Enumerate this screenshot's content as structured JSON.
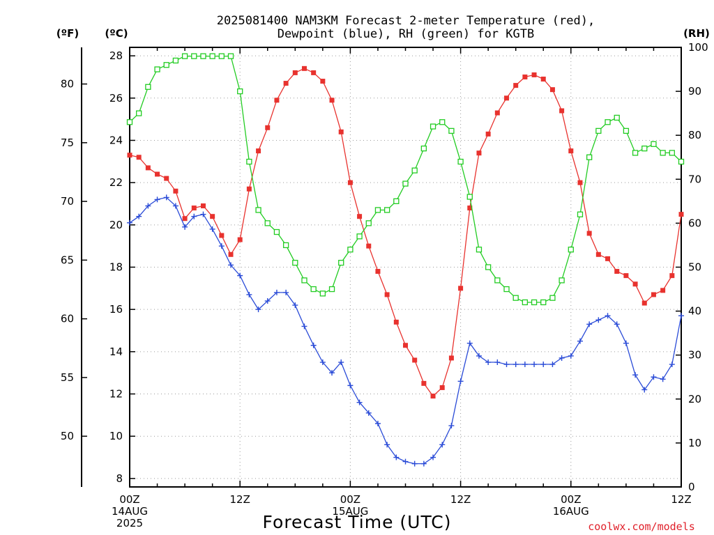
{
  "chart_data": {
    "type": "line",
    "title": [
      "2025081400 NAM3KM Forecast 2-meter Temperature (red),",
      "Dewpoint (blue), RH (green) for KGTB"
    ],
    "xlabel": "Forecast Time (UTC)",
    "units": {
      "left_outer": "(ºF)",
      "left_inner": "(ºC)",
      "right": "(RH)"
    },
    "credit": "coolwx.com/models",
    "xlim": [
      0,
      60
    ],
    "ylim_c": [
      7.6,
      28.4
    ],
    "ylim_rh": [
      0,
      100
    ],
    "ylim_f": [
      45.68,
      83.12
    ],
    "grid": true,
    "x_ticks": [
      {
        "x": 0,
        "lines": [
          "00Z",
          "14AUG",
          "2025"
        ]
      },
      {
        "x": 12,
        "lines": [
          "12Z"
        ]
      },
      {
        "x": 24,
        "lines": [
          "00Z",
          "15AUG"
        ]
      },
      {
        "x": 36,
        "lines": [
          "12Z"
        ]
      },
      {
        "x": 48,
        "lines": [
          "00Z",
          "16AUG"
        ]
      },
      {
        "x": 60,
        "lines": [
          "12Z"
        ]
      }
    ],
    "y_ticks_c": [
      8,
      10,
      12,
      14,
      16,
      18,
      20,
      22,
      24,
      26,
      28
    ],
    "y_ticks_f": [
      50,
      55,
      60,
      65,
      70,
      75,
      80
    ],
    "y_ticks_rh": [
      0,
      10,
      20,
      30,
      40,
      50,
      60,
      70,
      80,
      90,
      100
    ],
    "series": [
      {
        "name": "Temperature",
        "axis": "celsius",
        "color": "#e8322e",
        "marker": "filled-square",
        "x": [
          0,
          1,
          2,
          3,
          4,
          5,
          6,
          7,
          8,
          9,
          10,
          11,
          12,
          13,
          14,
          15,
          16,
          17,
          18,
          19,
          20,
          21,
          22,
          23,
          24,
          25,
          26,
          27,
          28,
          29,
          30,
          31,
          32,
          33,
          34,
          35,
          36,
          37,
          38,
          39,
          40,
          41,
          42,
          43,
          44,
          45,
          46,
          47,
          48,
          49,
          50,
          51,
          52,
          53,
          54,
          55,
          56,
          57,
          58,
          59,
          60
        ],
        "values": [
          23.3,
          23.2,
          22.7,
          22.4,
          22.2,
          21.6,
          20.3,
          20.8,
          20.9,
          20.4,
          19.5,
          18.6,
          19.3,
          21.7,
          23.5,
          24.6,
          25.9,
          26.7,
          27.2,
          27.4,
          27.2,
          26.8,
          25.9,
          24.4,
          22.0,
          20.4,
          19.0,
          17.8,
          16.7,
          15.4,
          14.3,
          13.6,
          12.5,
          11.9,
          12.3,
          13.7,
          17.0,
          20.8,
          23.4,
          24.3,
          25.3,
          26.0,
          26.6,
          27.0,
          27.1,
          26.9,
          26.4,
          25.4,
          23.5,
          22.0,
          19.6,
          18.6,
          18.4,
          17.8,
          17.6,
          17.2,
          16.3,
          16.7,
          16.9,
          17.6,
          20.5
        ]
      },
      {
        "name": "Dewpoint",
        "axis": "celsius",
        "color": "#2a4bd7",
        "marker": "plus",
        "x": [
          0,
          1,
          2,
          3,
          4,
          5,
          6,
          7,
          8,
          9,
          10,
          11,
          12,
          13,
          14,
          15,
          16,
          17,
          18,
          19,
          20,
          21,
          22,
          23,
          24,
          25,
          26,
          27,
          28,
          29,
          30,
          31,
          32,
          33,
          34,
          35,
          36,
          37,
          38,
          39,
          40,
          41,
          42,
          43,
          44,
          45,
          46,
          47,
          48,
          49,
          50,
          51,
          52,
          53,
          54,
          55,
          56,
          57,
          58,
          59,
          60
        ],
        "values": [
          20.1,
          20.4,
          20.9,
          21.2,
          21.3,
          20.9,
          19.9,
          20.4,
          20.5,
          19.8,
          19.0,
          18.1,
          17.6,
          16.7,
          16.0,
          16.4,
          16.8,
          16.8,
          16.2,
          15.2,
          14.3,
          13.5,
          13.0,
          13.5,
          12.4,
          11.6,
          11.1,
          10.6,
          9.6,
          9.0,
          8.8,
          8.7,
          8.7,
          9.0,
          9.6,
          10.5,
          12.6,
          14.4,
          13.8,
          13.5,
          13.5,
          13.4,
          13.4,
          13.4,
          13.4,
          13.4,
          13.4,
          13.7,
          13.8,
          14.5,
          15.3,
          15.5,
          15.7,
          15.3,
          14.4,
          12.9,
          12.2,
          12.8,
          12.7,
          13.4,
          15.7
        ]
      },
      {
        "name": "RH",
        "axis": "rh",
        "color": "#22cc22",
        "marker": "open-square",
        "x": [
          0,
          1,
          2,
          3,
          4,
          5,
          6,
          7,
          8,
          9,
          10,
          11,
          12,
          13,
          14,
          15,
          16,
          17,
          18,
          19,
          20,
          21,
          22,
          23,
          24,
          25,
          26,
          27,
          28,
          29,
          30,
          31,
          32,
          33,
          34,
          35,
          36,
          37,
          38,
          39,
          40,
          41,
          42,
          43,
          44,
          45,
          46,
          47,
          48,
          49,
          50,
          51,
          52,
          53,
          54,
          55,
          56,
          57,
          58,
          59,
          60
        ],
        "values": [
          83,
          85,
          91,
          95,
          96,
          97,
          98,
          98,
          98,
          98,
          98,
          98,
          90,
          74,
          63,
          60,
          58,
          55,
          51,
          47,
          45,
          44,
          45,
          51,
          54,
          57,
          60,
          63,
          63,
          65,
          69,
          72,
          77,
          82,
          83,
          81,
          74,
          66,
          54,
          50,
          47,
          45,
          43,
          42,
          42,
          42,
          43,
          47,
          54,
          62,
          75,
          81,
          83,
          84,
          81,
          76,
          77,
          78,
          76,
          76,
          74
        ]
      }
    ]
  }
}
